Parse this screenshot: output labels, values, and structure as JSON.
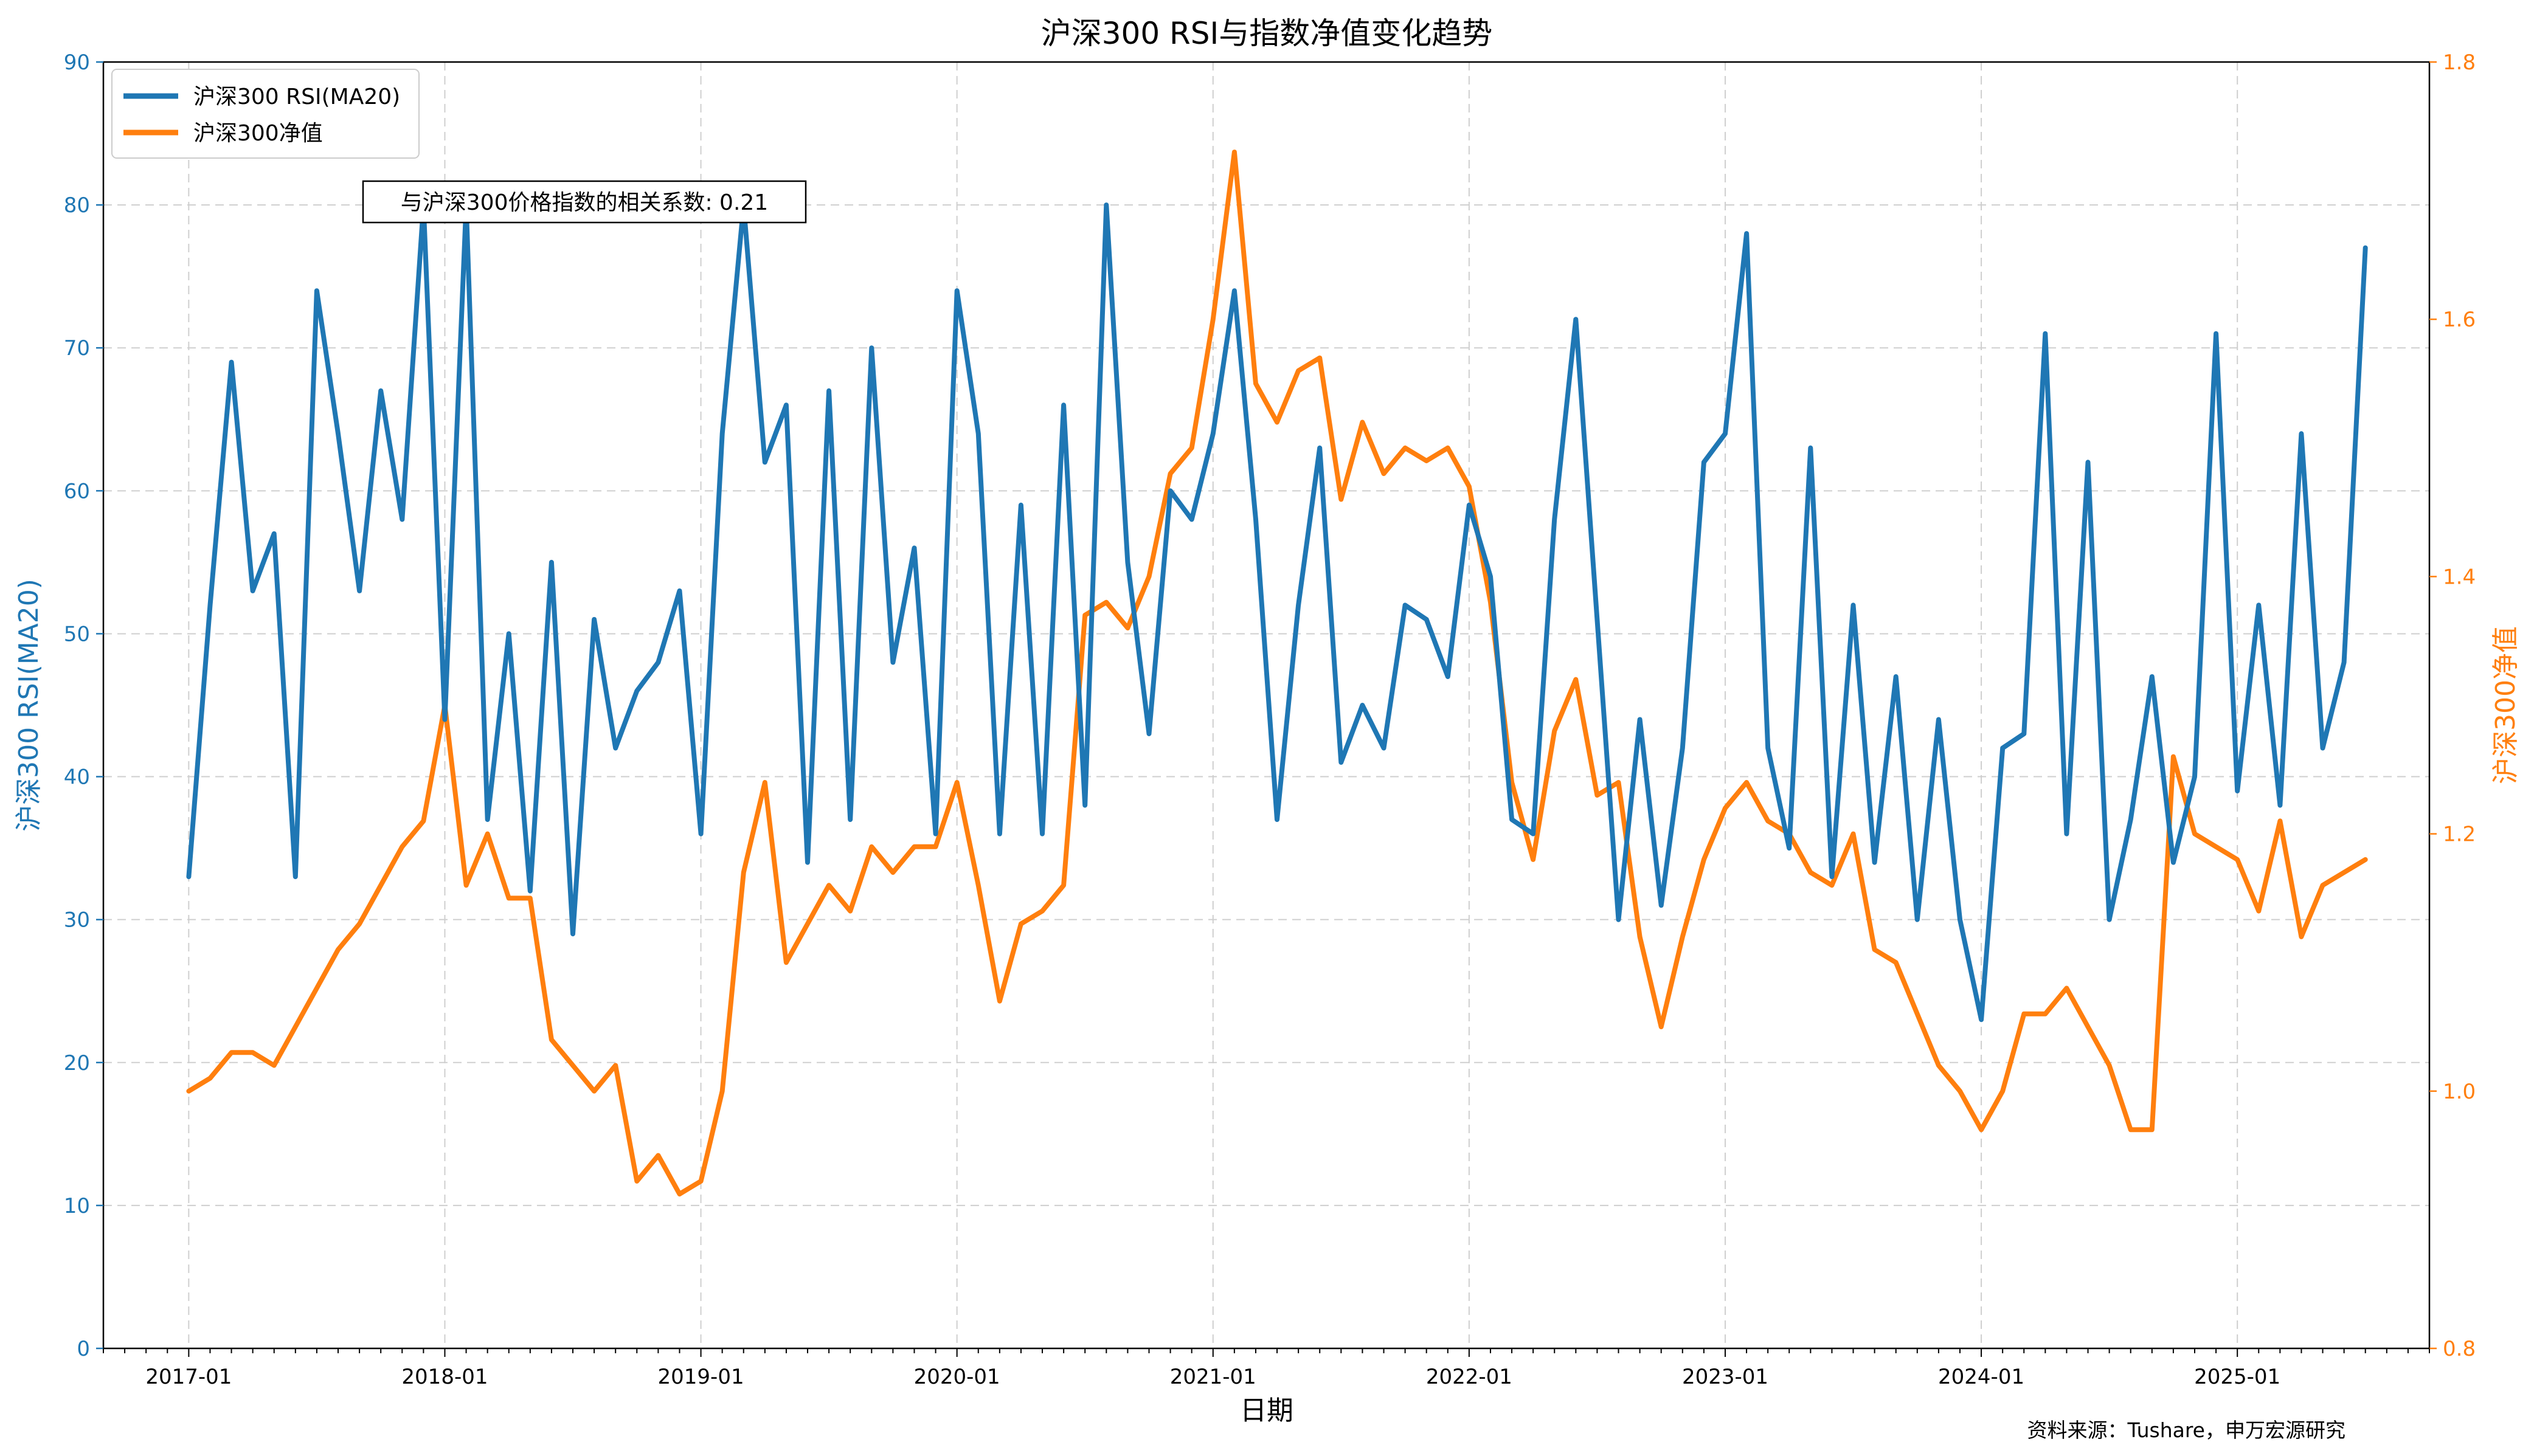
{
  "chart_data": {
    "type": "line",
    "title": "沪深300 RSI与指数净值变化趋势",
    "xlabel": "日期",
    "ylabel_left": "沪深300 RSI(MA20)",
    "ylabel_right": "沪深300净值",
    "ylim_left": [
      0,
      90
    ],
    "ylim_right": [
      0.8,
      1.8
    ],
    "yticks_left": [
      "0",
      "10",
      "20",
      "30",
      "40",
      "50",
      "60",
      "70",
      "80",
      "90"
    ],
    "yticks_right": [
      "0.8",
      "1.0",
      "1.2",
      "1.4",
      "1.6",
      "1.8"
    ],
    "xticks": [
      "2017-01",
      "2018-01",
      "2019-01",
      "2020-01",
      "2021-01",
      "2022-01",
      "2023-01",
      "2024-01",
      "2025-01"
    ],
    "xrange": [
      "2016-09",
      "2025-10"
    ],
    "grid": true,
    "legend_position": "top-left",
    "annotation": "与沪深300价格指数的相关系数: 0.21",
    "source": "资料来源：Tushare，申万宏源研究",
    "colors": {
      "rsi": "#1f77b4",
      "nav": "#ff7f0e"
    },
    "series": [
      {
        "name": "沪深300 RSI(MA20)",
        "axis": "left",
        "x": [
          "2017-01",
          "2017-02",
          "2017-03",
          "2017-04",
          "2017-05",
          "2017-06",
          "2017-07",
          "2017-08",
          "2017-09",
          "2017-10",
          "2017-11",
          "2017-12",
          "2018-01",
          "2018-02",
          "2018-03",
          "2018-04",
          "2018-05",
          "2018-06",
          "2018-07",
          "2018-08",
          "2018-09",
          "2018-10",
          "2018-11",
          "2018-12",
          "2019-01",
          "2019-02",
          "2019-03",
          "2019-04",
          "2019-05",
          "2019-06",
          "2019-07",
          "2019-08",
          "2019-09",
          "2019-10",
          "2019-11",
          "2019-12",
          "2020-01",
          "2020-02",
          "2020-03",
          "2020-04",
          "2020-05",
          "2020-06",
          "2020-07",
          "2020-08",
          "2020-09",
          "2020-10",
          "2020-11",
          "2020-12",
          "2021-01",
          "2021-02",
          "2021-03",
          "2021-04",
          "2021-05",
          "2021-06",
          "2021-07",
          "2021-08",
          "2021-09",
          "2021-10",
          "2021-11",
          "2021-12",
          "2022-01",
          "2022-02",
          "2022-03",
          "2022-04",
          "2022-05",
          "2022-06",
          "2022-07",
          "2022-08",
          "2022-09",
          "2022-10",
          "2022-11",
          "2022-12",
          "2023-01",
          "2023-02",
          "2023-03",
          "2023-04",
          "2023-05",
          "2023-06",
          "2023-07",
          "2023-08",
          "2023-09",
          "2023-10",
          "2023-11",
          "2023-12",
          "2024-01",
          "2024-02",
          "2024-03",
          "2024-04",
          "2024-05",
          "2024-06",
          "2024-07",
          "2024-08",
          "2024-09",
          "2024-10",
          "2024-11",
          "2024-12",
          "2025-01",
          "2025-02",
          "2025-03",
          "2025-04",
          "2025-05",
          "2025-06",
          "2025-07"
        ],
        "values": [
          33,
          52,
          69,
          53,
          57,
          33,
          74,
          64,
          53,
          67,
          58,
          80,
          44,
          80,
          37,
          50,
          32,
          55,
          29,
          51,
          42,
          46,
          48,
          53,
          36,
          64,
          80,
          62,
          66,
          34,
          67,
          37,
          70,
          48,
          56,
          36,
          74,
          64,
          36,
          59,
          36,
          66,
          38,
          80,
          55,
          43,
          60,
          58,
          64,
          74,
          58,
          37,
          52,
          63,
          41,
          45,
          42,
          52,
          51,
          47,
          59,
          54,
          37,
          36,
          58,
          72,
          51,
          30,
          44,
          31,
          42,
          62,
          64,
          78,
          42,
          35,
          63,
          33,
          52,
          34,
          47,
          30,
          44,
          30,
          23,
          42,
          43,
          71,
          36,
          62,
          30,
          37,
          47,
          34,
          40,
          71,
          39,
          52,
          38,
          64,
          42,
          48,
          77
        ]
      },
      {
        "name": "沪深300净值",
        "axis": "right",
        "x": [
          "2017-01",
          "2017-02",
          "2017-03",
          "2017-04",
          "2017-05",
          "2017-06",
          "2017-07",
          "2017-08",
          "2017-09",
          "2017-10",
          "2017-11",
          "2017-12",
          "2018-01",
          "2018-02",
          "2018-03",
          "2018-04",
          "2018-05",
          "2018-06",
          "2018-07",
          "2018-08",
          "2018-09",
          "2018-10",
          "2018-11",
          "2018-12",
          "2019-01",
          "2019-02",
          "2019-03",
          "2019-04",
          "2019-05",
          "2019-06",
          "2019-07",
          "2019-08",
          "2019-09",
          "2019-10",
          "2019-11",
          "2019-12",
          "2020-01",
          "2020-02",
          "2020-03",
          "2020-04",
          "2020-05",
          "2020-06",
          "2020-07",
          "2020-08",
          "2020-09",
          "2020-10",
          "2020-11",
          "2020-12",
          "2021-01",
          "2021-02",
          "2021-03",
          "2021-04",
          "2021-05",
          "2021-06",
          "2021-07",
          "2021-08",
          "2021-09",
          "2021-10",
          "2021-11",
          "2021-12",
          "2022-01",
          "2022-02",
          "2022-03",
          "2022-04",
          "2022-05",
          "2022-06",
          "2022-07",
          "2022-08",
          "2022-09",
          "2022-10",
          "2022-11",
          "2022-12",
          "2023-01",
          "2023-02",
          "2023-03",
          "2023-04",
          "2023-05",
          "2023-06",
          "2023-07",
          "2023-08",
          "2023-09",
          "2023-10",
          "2023-11",
          "2023-12",
          "2024-01",
          "2024-02",
          "2024-03",
          "2024-04",
          "2024-05",
          "2024-06",
          "2024-07",
          "2024-08",
          "2024-09",
          "2024-10",
          "2024-11",
          "2024-12",
          "2025-01",
          "2025-02",
          "2025-03",
          "2025-04",
          "2025-05",
          "2025-06",
          "2025-07"
        ],
        "values": [
          1.0,
          1.01,
          1.03,
          1.03,
          1.02,
          1.05,
          1.08,
          1.11,
          1.13,
          1.16,
          1.19,
          1.21,
          1.3,
          1.16,
          1.2,
          1.15,
          1.15,
          1.04,
          1.02,
          1.0,
          1.02,
          0.93,
          0.95,
          0.92,
          0.93,
          1.0,
          1.17,
          1.24,
          1.1,
          1.13,
          1.16,
          1.14,
          1.19,
          1.17,
          1.19,
          1.19,
          1.24,
          1.16,
          1.07,
          1.13,
          1.14,
          1.16,
          1.37,
          1.38,
          1.36,
          1.4,
          1.48,
          1.5,
          1.6,
          1.73,
          1.55,
          1.52,
          1.56,
          1.57,
          1.46,
          1.52,
          1.48,
          1.5,
          1.49,
          1.5,
          1.47,
          1.38,
          1.24,
          1.18,
          1.28,
          1.32,
          1.23,
          1.24,
          1.12,
          1.05,
          1.12,
          1.18,
          1.22,
          1.24,
          1.21,
          1.2,
          1.17,
          1.16,
          1.2,
          1.11,
          1.1,
          1.06,
          1.02,
          1.0,
          0.97,
          1.0,
          1.06,
          1.06,
          1.08,
          1.05,
          1.02,
          0.97,
          0.97,
          1.26,
          1.2,
          1.19,
          1.18,
          1.14,
          1.21,
          1.12,
          1.16,
          1.17,
          1.18
        ]
      }
    ]
  }
}
